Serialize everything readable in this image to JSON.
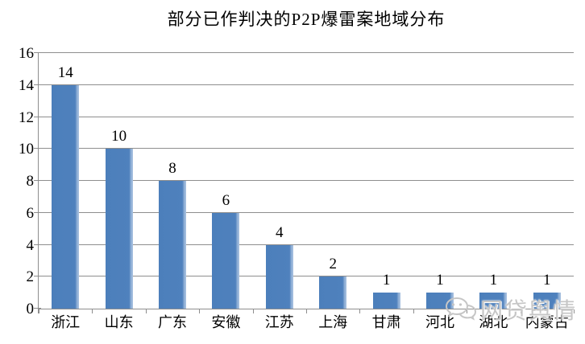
{
  "chart_data": {
    "type": "bar",
    "title": "部分已作判决的P2P爆雷案地域分布",
    "categories": [
      "浙江",
      "山东",
      "广东",
      "安徽",
      "江苏",
      "上海",
      "甘肃",
      "河北",
      "湖北",
      "内蒙古"
    ],
    "values": [
      14,
      10,
      8,
      6,
      4,
      2,
      1,
      1,
      1,
      1
    ],
    "xlabel": "",
    "ylabel": "",
    "ylim": [
      0,
      16
    ],
    "yticks": [
      0,
      2,
      4,
      6,
      8,
      10,
      12,
      14,
      16
    ],
    "grid": true,
    "legend": "none",
    "data_labels": true,
    "bar_color": "#4f81bd",
    "bar_highlight_color": "#a9c2e0",
    "grid_color": "#8e8e8e",
    "text_color": "#000000"
  },
  "watermark": {
    "text": "网贷舆情",
    "icon": "wechat-icon",
    "color": "#c6c6c6"
  }
}
